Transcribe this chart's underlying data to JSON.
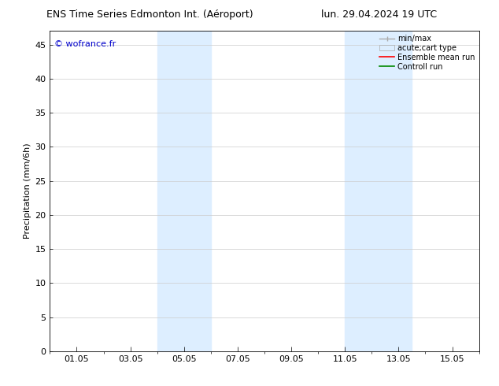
{
  "title_left": "ENS Time Series Edmonton Int. (Aéroport)",
  "title_right": "lun. 29.04.2024 19 UTC",
  "ylabel": "Precipitation (mm/6h)",
  "watermark": "© wofrance.fr",
  "watermark_color": "#0000cc",
  "ylim": [
    0,
    47
  ],
  "yticks": [
    0,
    5,
    10,
    15,
    20,
    25,
    30,
    35,
    40,
    45
  ],
  "xlim": [
    0.0,
    16.0
  ],
  "xtick_labels": [
    "01.05",
    "03.05",
    "05.05",
    "07.05",
    "09.05",
    "11.05",
    "13.05",
    "15.05"
  ],
  "xtick_positions": [
    1,
    3,
    5,
    7,
    9,
    11,
    13,
    15
  ],
  "minor_xtick_positions": [
    0,
    1,
    2,
    3,
    4,
    5,
    6,
    7,
    8,
    9,
    10,
    11,
    12,
    13,
    14,
    15,
    16
  ],
  "shaded_regions": [
    {
      "xmin": 4.0,
      "xmax": 6.0,
      "color": "#ddeeff"
    },
    {
      "xmin": 11.0,
      "xmax": 13.5,
      "color": "#ddeeff"
    }
  ],
  "bg_color": "#ffffff",
  "grid_color": "#cccccc",
  "tick_color": "#000000",
  "font_size": 8,
  "title_font_size": 9,
  "legend_font_size": 7
}
